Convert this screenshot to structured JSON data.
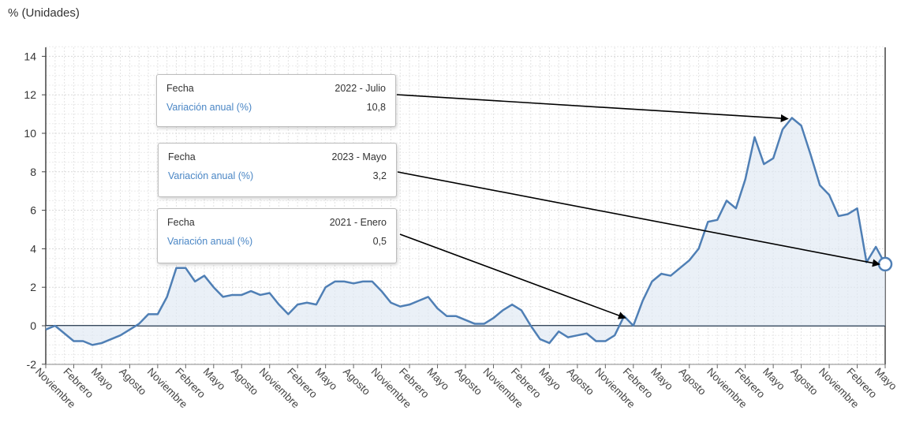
{
  "chart_data": {
    "type": "area",
    "ylabel": "% (Unidades)",
    "ylim": [
      -2,
      14.5
    ],
    "yticks": [
      -2,
      0,
      2,
      4,
      6,
      8,
      10,
      12,
      14
    ],
    "xlabels": [
      "Noviembre",
      "Febrero",
      "Mayo",
      "Agosto",
      "Noviembre",
      "Febrero",
      "Mayo",
      "Agosto",
      "Noviembre",
      "Febrero",
      "Mayo",
      "Agosto",
      "Noviembre",
      "Febrero",
      "Mayo",
      "Agosto",
      "Noviembre",
      "Febrero",
      "Mayo",
      "Agosto",
      "Noviembre",
      "Febrero",
      "Mayo",
      "Agosto",
      "Noviembre",
      "Febrero",
      "Mayo",
      "Agosto",
      "Noviembre",
      "Febrero",
      "Mayo"
    ],
    "grid": true,
    "series": [
      {
        "values": [
          -0.2,
          0.0,
          -0.4,
          -0.8,
          -0.8,
          -1.0,
          -0.9,
          -0.7,
          -0.5,
          -0.2,
          0.1,
          0.6,
          0.6,
          1.5,
          3.0,
          3.0,
          2.3,
          2.6,
          2.0,
          1.5,
          1.6,
          1.6,
          1.8,
          1.6,
          1.7,
          1.1,
          0.6,
          1.1,
          1.2,
          1.1,
          2.0,
          2.3,
          2.3,
          2.2,
          2.3,
          2.3,
          1.8,
          1.2,
          1.0,
          1.1,
          1.3,
          1.5,
          0.9,
          0.5,
          0.5,
          0.3,
          0.1,
          0.1,
          0.4,
          0.8,
          1.1,
          0.8,
          0.0,
          -0.7,
          -0.9,
          -0.3,
          -0.6,
          -0.5,
          -0.4,
          -0.8,
          -0.8,
          -0.5,
          0.5,
          0.0,
          1.3,
          2.3,
          2.7,
          2.6,
          3.0,
          3.4,
          4.0,
          5.4,
          5.5,
          6.5,
          6.1,
          7.6,
          9.8,
          8.4,
          8.7,
          10.2,
          10.8,
          10.4,
          8.9,
          7.3,
          6.8,
          5.7,
          5.8,
          6.1,
          3.3,
          4.1,
          3.2
        ],
        "color": "#4f7fb5"
      }
    ],
    "tooltips": [
      {
        "k1": "Fecha",
        "v1": "2022 - Julio",
        "k2": "Variación anual (%)",
        "v2": "10,8"
      },
      {
        "k1": "Fecha",
        "v1": "2023 - Mayo",
        "k2": "Variación anual (%)",
        "v2": "3,2"
      },
      {
        "k1": "Fecha",
        "v1": "2021 - Enero",
        "k2": "Variación anual (%)",
        "v2": "0,5"
      }
    ]
  }
}
